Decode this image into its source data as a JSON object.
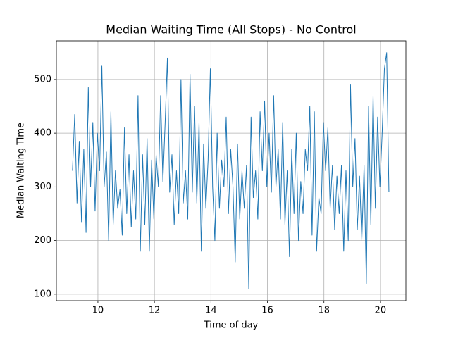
{
  "chart_data": {
    "type": "line",
    "title": "Median Waiting Time (All Stops) - No Control",
    "x_label": "Time of day",
    "y_label": "Median Waiting Time",
    "color": "#1f77b4",
    "grid": true,
    "xlim": [
      8.53,
      20.9
    ],
    "ylim": [
      88,
      572
    ],
    "xticks": [
      10,
      12,
      14,
      16,
      18,
      20
    ],
    "yticks": [
      100,
      200,
      300,
      400,
      500
    ],
    "x": [
      9.1,
      9.18,
      9.26,
      9.34,
      9.42,
      9.5,
      9.58,
      9.66,
      9.74,
      9.82,
      9.9,
      9.98,
      10.06,
      10.14,
      10.22,
      10.3,
      10.38,
      10.46,
      10.54,
      10.62,
      10.7,
      10.78,
      10.86,
      10.94,
      11.02,
      11.1,
      11.18,
      11.26,
      11.34,
      11.42,
      11.5,
      11.58,
      11.66,
      11.74,
      11.82,
      11.9,
      11.98,
      12.06,
      12.14,
      12.22,
      12.3,
      12.38,
      12.46,
      12.54,
      12.62,
      12.7,
      12.78,
      12.86,
      12.94,
      13.02,
      13.1,
      13.18,
      13.26,
      13.34,
      13.42,
      13.5,
      13.58,
      13.66,
      13.74,
      13.82,
      13.9,
      13.98,
      14.06,
      14.14,
      14.22,
      14.3,
      14.38,
      14.46,
      14.54,
      14.62,
      14.7,
      14.78,
      14.86,
      14.94,
      15.02,
      15.1,
      15.18,
      15.26,
      15.34,
      15.42,
      15.5,
      15.58,
      15.66,
      15.74,
      15.82,
      15.9,
      15.98,
      16.06,
      16.14,
      16.22,
      16.3,
      16.38,
      16.46,
      16.54,
      16.62,
      16.7,
      16.78,
      16.86,
      16.94,
      17.02,
      17.1,
      17.18,
      17.26,
      17.34,
      17.42,
      17.5,
      17.58,
      17.66,
      17.74,
      17.82,
      17.9,
      17.98,
      18.06,
      18.14,
      18.22,
      18.3,
      18.38,
      18.46,
      18.54,
      18.62,
      18.7,
      18.78,
      18.86,
      18.94,
      19.02,
      19.1,
      19.18,
      19.26,
      19.34,
      19.42,
      19.5,
      19.58,
      19.66,
      19.74,
      19.82,
      19.9,
      19.98,
      20.06,
      20.14,
      20.22,
      20.3
    ],
    "values": [
      330,
      435,
      270,
      385,
      235,
      370,
      215,
      485,
      300,
      420,
      255,
      400,
      330,
      525,
      300,
      365,
      200,
      440,
      230,
      330,
      260,
      295,
      210,
      410,
      250,
      360,
      225,
      330,
      240,
      470,
      180,
      360,
      230,
      390,
      180,
      350,
      240,
      360,
      300,
      470,
      310,
      420,
      540,
      290,
      360,
      230,
      330,
      250,
      500,
      270,
      330,
      240,
      510,
      290,
      450,
      270,
      420,
      180,
      380,
      260,
      350,
      520,
      300,
      200,
      400,
      260,
      350,
      300,
      430,
      250,
      370,
      300,
      160,
      380,
      240,
      330,
      260,
      340,
      110,
      430,
      280,
      330,
      240,
      440,
      330,
      460,
      300,
      400,
      290,
      470,
      300,
      370,
      240,
      420,
      230,
      330,
      170,
      370,
      250,
      400,
      200,
      310,
      250,
      370,
      330,
      450,
      210,
      440,
      180,
      280,
      250,
      420,
      330,
      410,
      260,
      340,
      220,
      320,
      250,
      340,
      180,
      330,
      200,
      490,
      300,
      390,
      220,
      320,
      200,
      340,
      120,
      450,
      230,
      470,
      260,
      430,
      300,
      400,
      520,
      550,
      290
    ]
  }
}
